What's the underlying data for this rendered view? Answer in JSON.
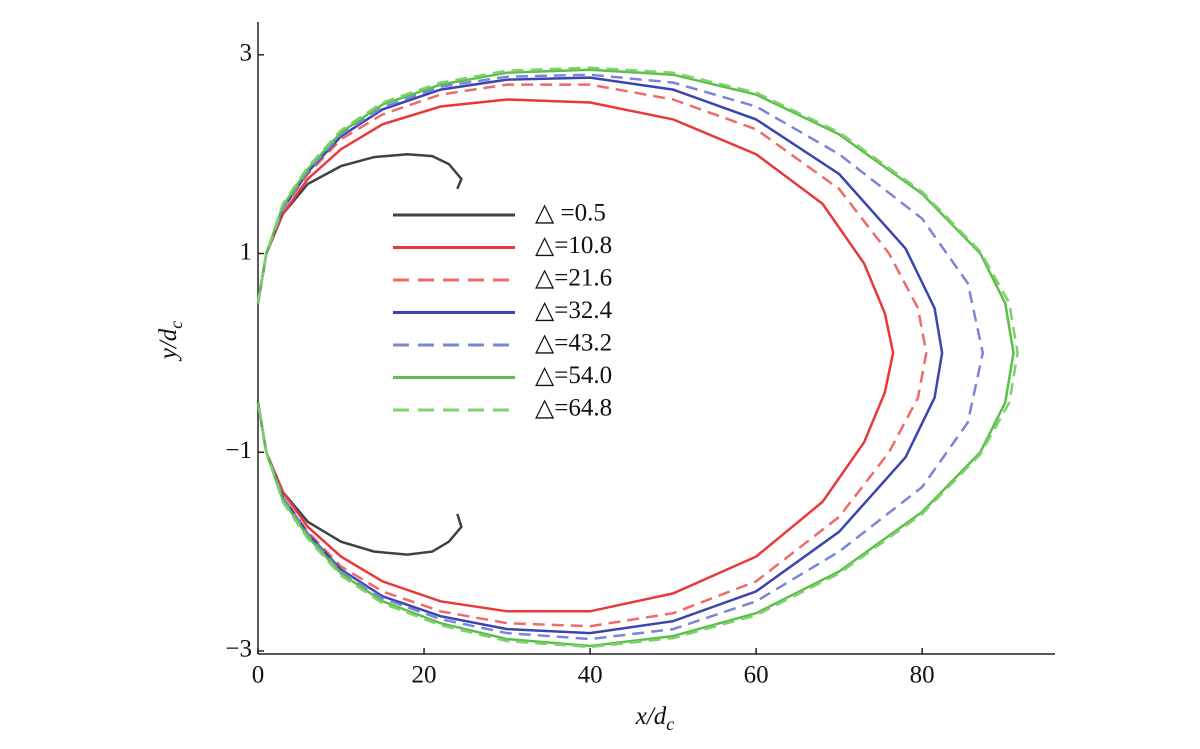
{
  "chart_data": {
    "type": "line",
    "xlabel": {
      "text": "x/d",
      "subscript": "c"
    },
    "ylabel": {
      "text": "y/d",
      "subscript": "c"
    },
    "xlim": [
      0,
      96
    ],
    "ylim": [
      -3,
      3.33
    ],
    "xticks": [
      0,
      20,
      40,
      60,
      80
    ],
    "yticks": [
      {
        "value": -3,
        "label": "−3"
      },
      {
        "value": -1,
        "label": "−1"
      },
      1,
      3
    ],
    "legend": "center-left",
    "series": [
      {
        "name": "△ =0.5",
        "color": "#3d4245",
        "dash": false,
        "x": [
          0,
          1,
          3,
          6,
          10,
          14,
          18,
          21,
          23,
          24.5,
          24,
          null,
          0,
          1,
          3,
          6,
          10,
          14,
          18,
          21,
          23,
          24.5,
          24
        ],
        "values": [
          0.5,
          1.0,
          1.4,
          1.7,
          1.88,
          1.97,
          2.0,
          1.98,
          1.9,
          1.75,
          1.65,
          null,
          -0.5,
          -1.0,
          -1.4,
          -1.7,
          -1.9,
          -2.0,
          -2.03,
          -2.0,
          -1.9,
          -1.75,
          -1.62
        ]
      },
      {
        "name": "△=10.8",
        "color": "#e8393a",
        "dash": false,
        "x": [
          0,
          1,
          3,
          6,
          10,
          15,
          22,
          30,
          40,
          50,
          60,
          68,
          73,
          75.5,
          76.5,
          75.5,
          73,
          68,
          60,
          50,
          40,
          30,
          22,
          15,
          10,
          6,
          3,
          1,
          0
        ],
        "values": [
          0.5,
          1.0,
          1.4,
          1.75,
          2.05,
          2.3,
          2.48,
          2.55,
          2.52,
          2.35,
          2.0,
          1.5,
          0.9,
          0.4,
          0,
          -0.4,
          -0.9,
          -1.5,
          -2.05,
          -2.42,
          -2.6,
          -2.6,
          -2.5,
          -2.3,
          -2.05,
          -1.75,
          -1.4,
          -1.0,
          -0.5
        ]
      },
      {
        "name": "△=21.6",
        "color": "#f06a6a",
        "dash": true,
        "x": [
          0,
          1,
          3,
          6,
          10,
          15,
          22,
          30,
          40,
          50,
          60,
          70,
          76,
          79.5,
          80.5,
          79.5,
          76,
          70,
          60,
          50,
          40,
          30,
          22,
          15,
          10,
          6,
          3,
          1,
          0
        ],
        "values": [
          0.5,
          1.0,
          1.45,
          1.8,
          2.15,
          2.4,
          2.6,
          2.7,
          2.7,
          2.55,
          2.25,
          1.65,
          1.0,
          0.45,
          0,
          -0.45,
          -1.0,
          -1.65,
          -2.3,
          -2.62,
          -2.75,
          -2.72,
          -2.6,
          -2.4,
          -2.15,
          -1.8,
          -1.45,
          -1.0,
          -0.5
        ]
      },
      {
        "name": "△=32.4",
        "color": "#3a45b0",
        "dash": false,
        "x": [
          0,
          1,
          3,
          6,
          10,
          15,
          22,
          30,
          40,
          50,
          60,
          70,
          78,
          81.5,
          82.4,
          81.5,
          78,
          70,
          60,
          50,
          40,
          30,
          22,
          15,
          10,
          6,
          3,
          1,
          0
        ],
        "values": [
          0.5,
          1.0,
          1.45,
          1.82,
          2.18,
          2.45,
          2.65,
          2.75,
          2.77,
          2.65,
          2.35,
          1.8,
          1.05,
          0.45,
          0,
          -0.45,
          -1.05,
          -1.8,
          -2.4,
          -2.7,
          -2.82,
          -2.78,
          -2.65,
          -2.45,
          -2.18,
          -1.82,
          -1.45,
          -1.0,
          -0.5
        ]
      },
      {
        "name": "△=43.2",
        "color": "#7b85d8",
        "dash": true,
        "x": [
          0,
          1,
          3,
          6,
          10,
          15,
          22,
          30,
          40,
          50,
          60,
          70,
          80,
          85.5,
          87.3,
          85.5,
          80,
          70,
          60,
          50,
          40,
          30,
          22,
          15,
          10,
          6,
          3,
          1,
          0
        ],
        "values": [
          0.5,
          1.0,
          1.45,
          1.83,
          2.2,
          2.47,
          2.68,
          2.78,
          2.8,
          2.72,
          2.48,
          2.0,
          1.35,
          0.7,
          0,
          -0.7,
          -1.35,
          -2.0,
          -2.5,
          -2.78,
          -2.88,
          -2.82,
          -2.68,
          -2.47,
          -2.2,
          -1.83,
          -1.45,
          -1.0,
          -0.5
        ]
      },
      {
        "name": "△=54.0",
        "color": "#5bbf4a",
        "dash": false,
        "x": [
          0,
          1,
          3,
          6,
          10,
          15,
          22,
          30,
          40,
          50,
          60,
          70,
          80,
          87,
          90,
          91,
          90,
          87,
          80,
          70,
          60,
          50,
          40,
          30,
          22,
          15,
          10,
          6,
          3,
          1,
          0
        ],
        "values": [
          0.5,
          1.0,
          1.48,
          1.85,
          2.22,
          2.5,
          2.7,
          2.82,
          2.85,
          2.8,
          2.6,
          2.2,
          1.6,
          1.0,
          0.5,
          0,
          -0.5,
          -1.0,
          -1.6,
          -2.2,
          -2.62,
          -2.85,
          -2.95,
          -2.88,
          -2.72,
          -2.5,
          -2.22,
          -1.85,
          -1.48,
          -1.0,
          -0.5
        ]
      },
      {
        "name": "△=64.8",
        "color": "#7ed26c",
        "dash": true,
        "x": [
          0,
          1,
          3,
          6,
          10,
          15,
          22,
          30,
          40,
          50,
          60,
          70,
          80,
          87,
          90.5,
          91.5,
          90.5,
          87,
          80,
          70,
          60,
          50,
          40,
          30,
          22,
          15,
          10,
          6,
          3,
          1,
          0
        ],
        "values": [
          0.5,
          1.0,
          1.5,
          1.87,
          2.24,
          2.52,
          2.72,
          2.84,
          2.87,
          2.82,
          2.62,
          2.22,
          1.62,
          1.02,
          0.5,
          0,
          -0.5,
          -1.02,
          -1.62,
          -2.22,
          -2.64,
          -2.87,
          -2.96,
          -2.9,
          -2.74,
          -2.52,
          -2.24,
          -1.87,
          -1.5,
          -1.0,
          -0.5
        ]
      }
    ]
  }
}
